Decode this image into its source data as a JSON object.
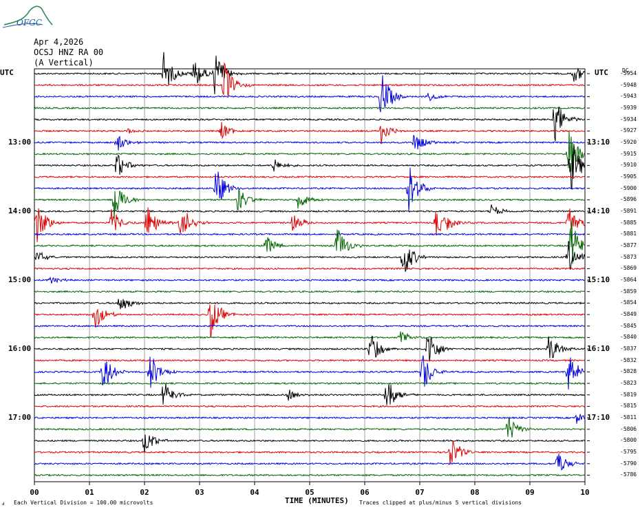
{
  "logo": {
    "text": "OFGC",
    "color": "#2e8b57"
  },
  "header": {
    "date": "Apr 4,2026",
    "station": "OCSJ HNZ RA 00",
    "component": "(A Vertical)"
  },
  "left_axis_label": "UTC",
  "right_axis_label": "UTC",
  "dc_label": "DC",
  "x_axis_title": "TIME (MINUTES)",
  "footer_left": "Each Vertical Division =  100.00 microvolts",
  "footer_right": "Traces clipped at plus/minus 5 vertical divisions",
  "footer_mark": "ⅎ",
  "chart_data": {
    "type": "line",
    "xlim": [
      0,
      10
    ],
    "x_ticks": [
      "00",
      "01",
      "02",
      "03",
      "04",
      "05",
      "06",
      "07",
      "08",
      "09",
      "10"
    ],
    "left_time_labels": [
      "13:00",
      "14:00",
      "15:00",
      "16:00",
      "17:00"
    ],
    "right_time_labels": [
      "13:10",
      "14:10",
      "15:10",
      "16:10",
      "17:10"
    ],
    "trace_colors": [
      "#000000",
      "#dd0000",
      "#0000dd",
      "#006400"
    ],
    "trace_count": 36,
    "dc_offsets": [
      "-5954",
      "-5948",
      "-5943",
      "-5939",
      "-5934",
      "-5927",
      "-5920",
      "-5915",
      "-5910",
      "-5905",
      "-5900",
      "-5896",
      "-5891",
      "-5885",
      "-5881",
      "-5877",
      "-5873",
      "-5869",
      "-5864",
      "-5859",
      "-5854",
      "-5849",
      "-5845",
      "-5840",
      "-5837",
      "-5832",
      "-5828",
      "-5823",
      "-5819",
      "-5815",
      "-5811",
      "-5806",
      "-5800",
      "-5795",
      "-5790",
      "-5786"
    ],
    "events": [
      {
        "trace": 0,
        "minute": 2.35,
        "amp": 1.0
      },
      {
        "trace": 0,
        "minute": 2.9,
        "amp": 0.7
      },
      {
        "trace": 0,
        "minute": 3.28,
        "amp": 1.0
      },
      {
        "trace": 0,
        "minute": 9.8,
        "amp": 0.4
      },
      {
        "trace": 1,
        "minute": 3.45,
        "amp": 1.0
      },
      {
        "trace": 2,
        "minute": 6.3,
        "amp": 1.2
      },
      {
        "trace": 2,
        "minute": 7.15,
        "amp": 0.2
      },
      {
        "trace": 4,
        "minute": 9.45,
        "amp": 1.0
      },
      {
        "trace": 5,
        "minute": 3.4,
        "amp": 0.4
      },
      {
        "trace": 5,
        "minute": 6.3,
        "amp": 0.6
      },
      {
        "trace": 5,
        "minute": 1.7,
        "amp": 0.15
      },
      {
        "trace": 6,
        "minute": 1.5,
        "amp": 0.4
      },
      {
        "trace": 6,
        "minute": 6.9,
        "amp": 0.5
      },
      {
        "trace": 7,
        "minute": 9.7,
        "amp": 1.2
      },
      {
        "trace": 8,
        "minute": 1.5,
        "amp": 0.6
      },
      {
        "trace": 8,
        "minute": 4.35,
        "amp": 0.3
      },
      {
        "trace": 8,
        "minute": 9.75,
        "amp": 1.2
      },
      {
        "trace": 10,
        "minute": 3.3,
        "amp": 1.0
      },
      {
        "trace": 10,
        "minute": 6.8,
        "amp": 1.2
      },
      {
        "trace": 11,
        "minute": 1.45,
        "amp": 1.0
      },
      {
        "trace": 11,
        "minute": 3.7,
        "amp": 0.6
      },
      {
        "trace": 11,
        "minute": 4.8,
        "amp": 0.5
      },
      {
        "trace": 12,
        "minute": 8.3,
        "amp": 0.3
      },
      {
        "trace": 13,
        "minute": 0.05,
        "amp": 1.0
      },
      {
        "trace": 13,
        "minute": 1.4,
        "amp": 0.6
      },
      {
        "trace": 13,
        "minute": 2.05,
        "amp": 0.9
      },
      {
        "trace": 13,
        "minute": 2.65,
        "amp": 1.0
      },
      {
        "trace": 13,
        "minute": 4.7,
        "amp": 0.5
      },
      {
        "trace": 13,
        "minute": 7.3,
        "amp": 0.6
      },
      {
        "trace": 13,
        "minute": 7.5,
        "amp": 0.3
      },
      {
        "trace": 13,
        "minute": 9.7,
        "amp": 0.9
      },
      {
        "trace": 15,
        "minute": 4.2,
        "amp": 0.5
      },
      {
        "trace": 15,
        "minute": 5.5,
        "amp": 0.9
      },
      {
        "trace": 15,
        "minute": 9.75,
        "amp": 1.2
      },
      {
        "trace": 16,
        "minute": 0.05,
        "amp": 0.3
      },
      {
        "trace": 16,
        "minute": 6.7,
        "amp": 1.0
      },
      {
        "trace": 16,
        "minute": 9.7,
        "amp": 0.7
      },
      {
        "trace": 18,
        "minute": 0.3,
        "amp": 0.2
      },
      {
        "trace": 20,
        "minute": 1.55,
        "amp": 0.5
      },
      {
        "trace": 21,
        "minute": 1.1,
        "amp": 0.7
      },
      {
        "trace": 21,
        "minute": 3.2,
        "amp": 1.0
      },
      {
        "trace": 23,
        "minute": 6.65,
        "amp": 0.3
      },
      {
        "trace": 24,
        "minute": 6.1,
        "amp": 0.9
      },
      {
        "trace": 24,
        "minute": 7.15,
        "amp": 1.0
      },
      {
        "trace": 24,
        "minute": 9.35,
        "amp": 0.7
      },
      {
        "trace": 26,
        "minute": 1.25,
        "amp": 0.9
      },
      {
        "trace": 26,
        "minute": 2.1,
        "amp": 0.9
      },
      {
        "trace": 26,
        "minute": 7.05,
        "amp": 1.0
      },
      {
        "trace": 26,
        "minute": 9.7,
        "amp": 0.9
      },
      {
        "trace": 28,
        "minute": 2.35,
        "amp": 0.7
      },
      {
        "trace": 28,
        "minute": 4.6,
        "amp": 0.3
      },
      {
        "trace": 28,
        "minute": 6.4,
        "amp": 0.9
      },
      {
        "trace": 30,
        "minute": 9.85,
        "amp": 0.25
      },
      {
        "trace": 31,
        "minute": 8.6,
        "amp": 0.7
      },
      {
        "trace": 32,
        "minute": 2.0,
        "amp": 0.6
      },
      {
        "trace": 33,
        "minute": 7.55,
        "amp": 0.8
      },
      {
        "trace": 34,
        "minute": 9.5,
        "amp": 0.6
      }
    ]
  }
}
